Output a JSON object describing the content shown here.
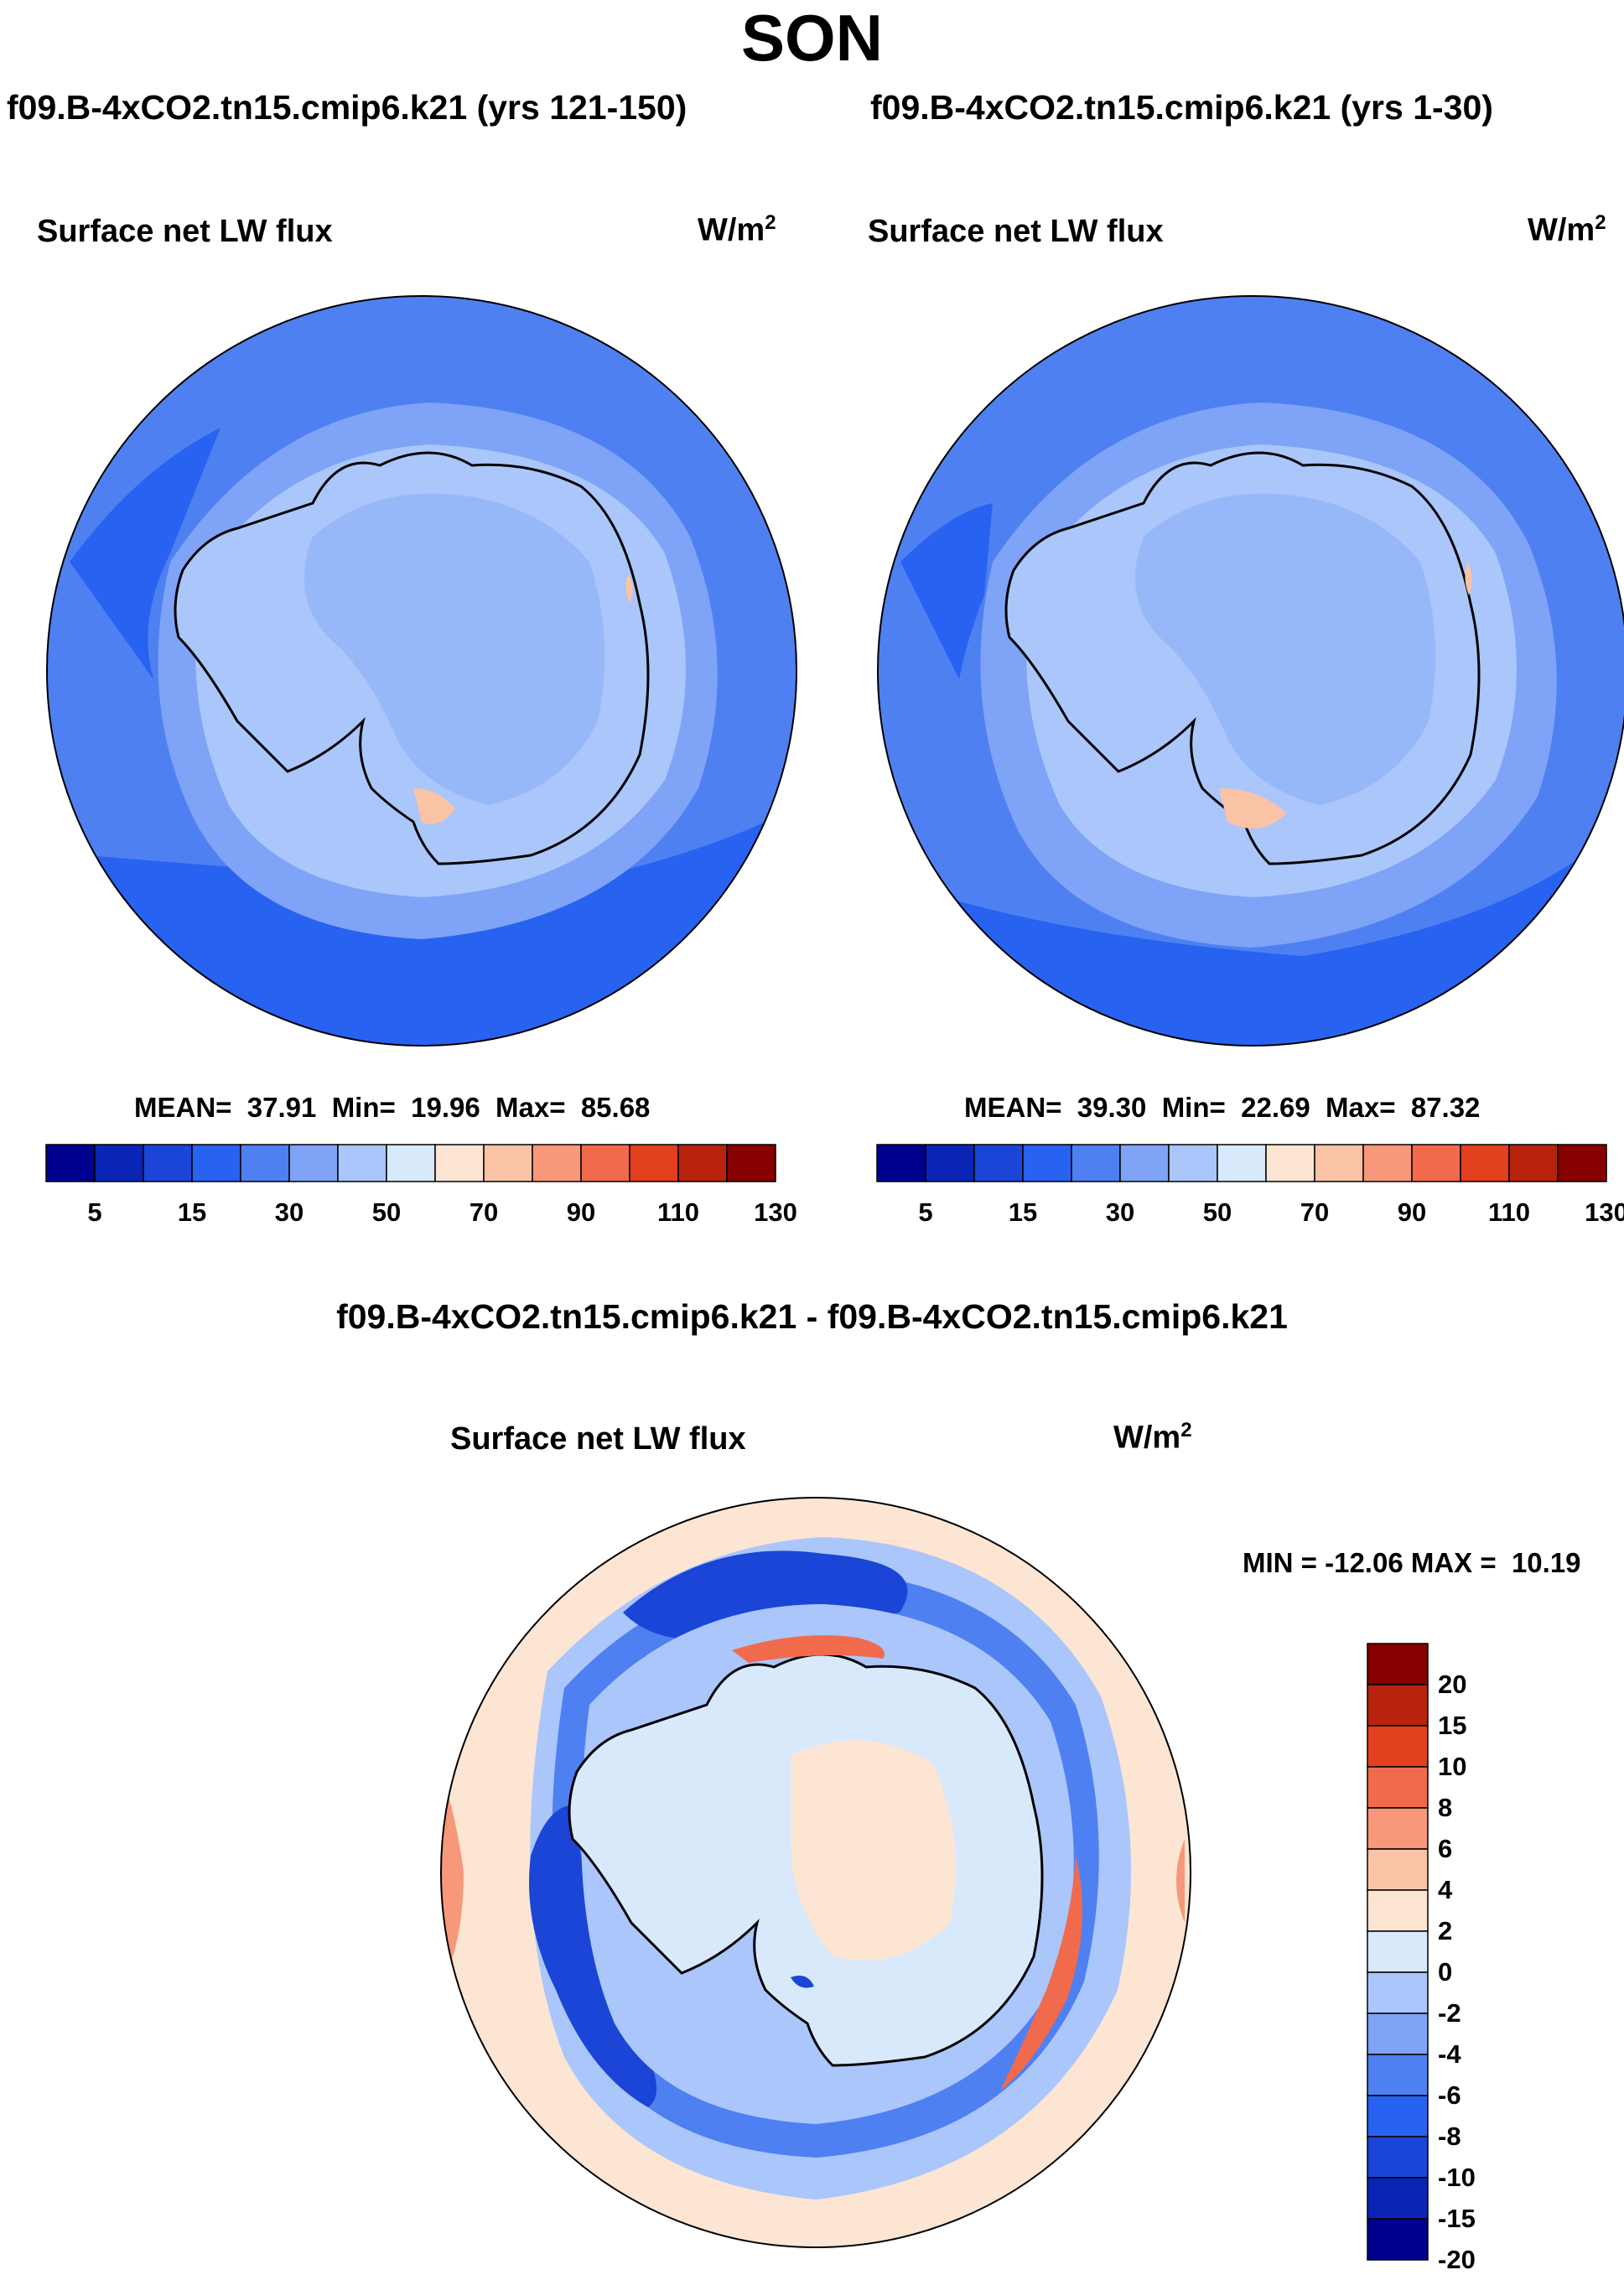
{
  "figure": {
    "season_title": "SON",
    "panels": [
      {
        "title": "f09.B-4xCO2.tn15.cmip6.k21 (yrs 121-150)",
        "variable": "Surface net LW flux",
        "units_base": "W/m",
        "units_exp": "2",
        "stats": "MEAN=  37.91  Min=  19.96  Max=  85.68"
      },
      {
        "title": "f09.B-4xCO2.tn15.cmip6.k21 (yrs 1-30)",
        "variable": "Surface net LW flux",
        "units_base": "W/m",
        "units_exp": "2",
        "stats": "MEAN=  39.30  Min=  22.69  Max=  87.32"
      },
      {
        "title": "f09.B-4xCO2.tn15.cmip6.k21 - f09.B-4xCO2.tn15.cmip6.k21",
        "variable": "Surface net LW flux",
        "units_base": "W/m",
        "units_exp": "2",
        "stats": "MIN = -12.06 MAX =  10.19"
      }
    ]
  },
  "chart_data": [
    {
      "type": "heatmap",
      "projection": "south-polar-stereographic",
      "title": "f09.B-4xCO2.tn15.cmip6.k21 (yrs 121-150)",
      "variable": "Surface net LW flux",
      "units": "W/m2",
      "mean": 37.91,
      "min": 19.96,
      "max": 85.68,
      "colorbar_levels": [
        5,
        10,
        15,
        20,
        30,
        40,
        50,
        60,
        70,
        80,
        90,
        100,
        110,
        120,
        130
      ],
      "colorbar_tick_labels": [
        "5",
        "15",
        "30",
        "50",
        "70",
        "90",
        "110",
        "130"
      ],
      "colorbar_colors": [
        "#00008e",
        "#0a25b5",
        "#1a45d6",
        "#2862f0",
        "#4f80f2",
        "#7ea3f7",
        "#aac6fa",
        "#d7e9fb",
        "#fde5d3",
        "#fbc3a5",
        "#f8987a",
        "#f26a4c",
        "#e2401f",
        "#b8230d",
        "#860000"
      ]
    },
    {
      "type": "heatmap",
      "projection": "south-polar-stereographic",
      "title": "f09.B-4xCO2.tn15.cmip6.k21 (yrs 1-30)",
      "variable": "Surface net LW flux",
      "units": "W/m2",
      "mean": 39.3,
      "min": 22.69,
      "max": 87.32,
      "colorbar_levels": [
        5,
        10,
        15,
        20,
        30,
        40,
        50,
        60,
        70,
        80,
        90,
        100,
        110,
        120,
        130
      ],
      "colorbar_tick_labels": [
        "5",
        "15",
        "30",
        "50",
        "70",
        "90",
        "110",
        "130"
      ],
      "colorbar_colors": [
        "#00008e",
        "#0a25b5",
        "#1a45d6",
        "#2862f0",
        "#4f80f2",
        "#7ea3f7",
        "#aac6fa",
        "#d7e9fb",
        "#fde5d3",
        "#fbc3a5",
        "#f8987a",
        "#f26a4c",
        "#e2401f",
        "#b8230d",
        "#860000"
      ]
    },
    {
      "type": "heatmap",
      "projection": "south-polar-stereographic",
      "title": "f09.B-4xCO2.tn15.cmip6.k21 - f09.B-4xCO2.tn15.cmip6.k21",
      "variable": "Surface net LW flux",
      "units": "W/m2",
      "min": -12.06,
      "max": 10.19,
      "colorbar_levels": [
        20,
        15,
        10,
        8,
        6,
        4,
        2,
        0,
        -2,
        -4,
        -6,
        -8,
        -10,
        -15,
        -20
      ],
      "colorbar_tick_labels": [
        "20",
        "15",
        "10",
        "8",
        "6",
        "4",
        "2",
        "0",
        "-2",
        "-4",
        "-6",
        "-8",
        "-10",
        "-15",
        "-20"
      ],
      "colorbar_colors": [
        "#860000",
        "#b8230d",
        "#e2401f",
        "#f26a4c",
        "#f8987a",
        "#fbc3a5",
        "#fde5d3",
        "#d7e9fb",
        "#aac6fa",
        "#7ea3f7",
        "#4f80f2",
        "#2862f0",
        "#1a45d6",
        "#0a25b5",
        "#00008e"
      ]
    }
  ]
}
